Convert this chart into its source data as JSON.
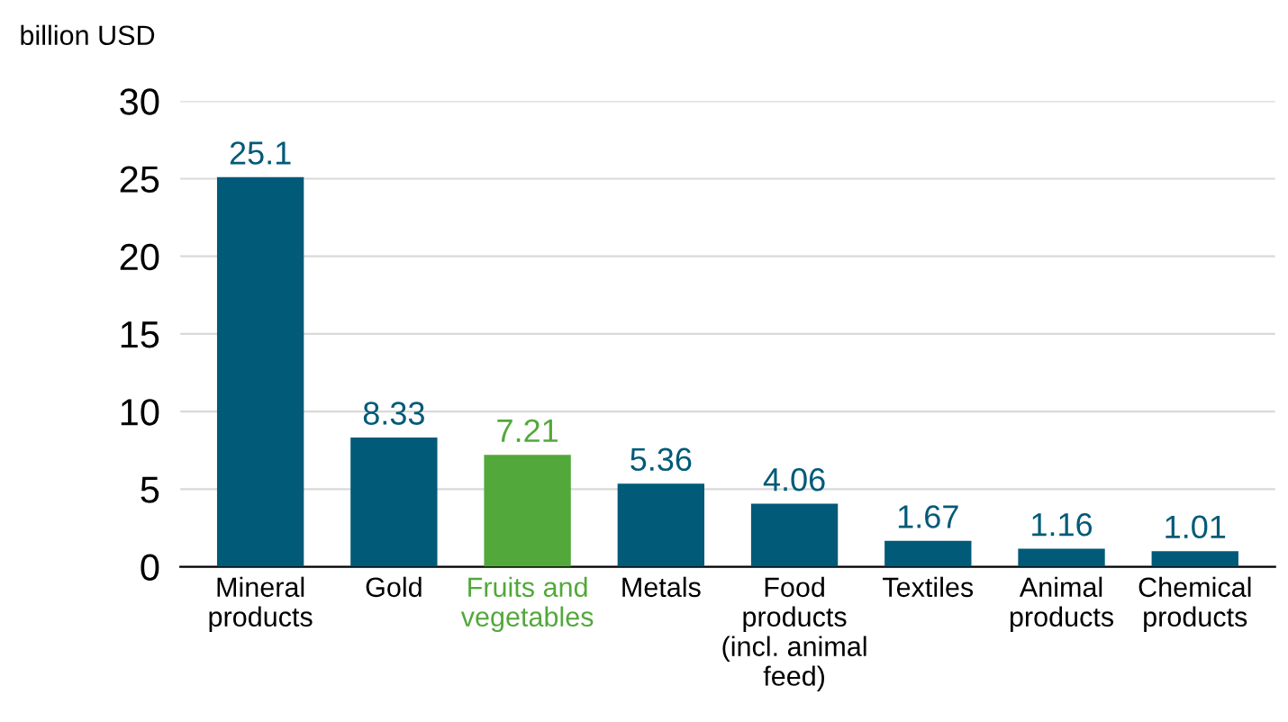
{
  "chart_data": {
    "type": "bar",
    "ylabel": "billion USD",
    "categories": [
      "Mineral\nproducts",
      "Gold",
      "Fruits and\nvegetables",
      "Metals",
      "Food\nproducts\n(incl. animal\nfeed)",
      "Textiles",
      "Animal\nproducts",
      "Chemical\nproducts"
    ],
    "values": [
      25.1,
      8.33,
      7.21,
      5.36,
      4.06,
      1.67,
      1.16,
      1.01
    ],
    "colors": [
      "#005a78",
      "#005a78",
      "#52a83a",
      "#005a78",
      "#005a78",
      "#005a78",
      "#005a78",
      "#005a78"
    ],
    "data_labels": true,
    "ylim": [
      0,
      30
    ],
    "yticks": [
      0,
      5,
      10,
      15,
      20,
      25,
      30
    ],
    "grid": "y",
    "legend": false
  }
}
